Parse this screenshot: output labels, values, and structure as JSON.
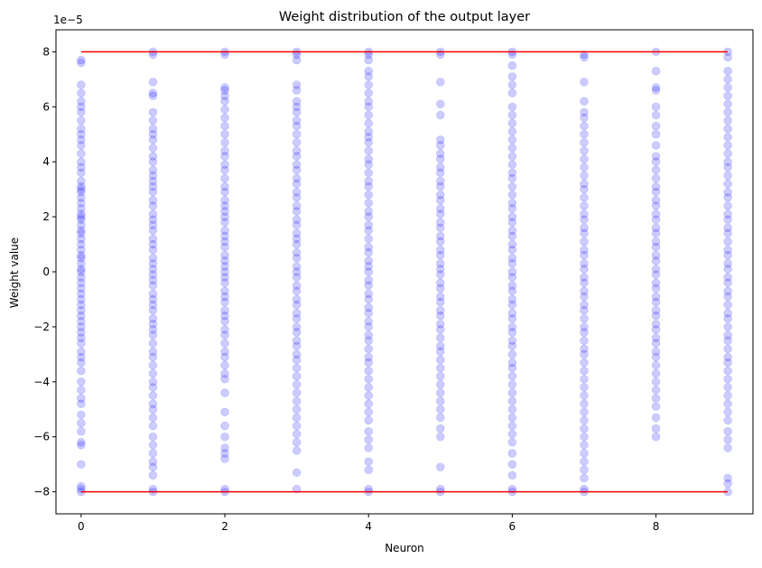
{
  "chart_data": {
    "type": "scatter",
    "title": "Weight distribution of the output layer",
    "xlabel": "Neuron",
    "ylabel": "Weight value",
    "y_offset_label": "1e−5",
    "xlim": [
      -0.35,
      9.35
    ],
    "ylim": [
      -8.8,
      8.8
    ],
    "x_ticks": [
      0,
      2,
      4,
      6,
      8
    ],
    "x_tick_labels": [
      "0",
      "2",
      "4",
      "6",
      "8"
    ],
    "y_ticks": [
      -8,
      -6,
      -4,
      -2,
      0,
      2,
      4,
      6,
      8
    ],
    "y_tick_labels": [
      "−8",
      "−6",
      "−4",
      "−2",
      "0",
      "2",
      "4",
      "6",
      "8"
    ],
    "grid": false,
    "point_color": "#0000ff",
    "point_alpha": 0.2,
    "bound_color": "#ff0000",
    "bounds": [
      {
        "y": 8,
        "x_from": 0,
        "x_to": 9
      },
      {
        "y": -8,
        "x_from": 0,
        "x_to": 9
      }
    ],
    "series": [
      {
        "x": 0,
        "values": [
          7.7,
          7.6,
          6.8,
          6.5,
          6.2,
          6.0,
          5.8,
          5.5,
          5.2,
          5.0,
          4.8,
          4.6,
          4.3,
          4.0,
          3.8,
          3.6,
          3.3,
          3.1,
          3.0,
          2.9,
          2.7,
          2.5,
          2.3,
          2.1,
          2.0,
          1.9,
          1.7,
          1.5,
          1.4,
          1.2,
          1.0,
          0.8,
          0.6,
          0.5,
          0.3,
          0.1,
          0.0,
          -0.2,
          -0.4,
          -0.6,
          -0.8,
          -1.0,
          -1.2,
          -1.4,
          -1.6,
          -1.8,
          -2.0,
          -2.2,
          -2.4,
          -2.6,
          -2.9,
          -3.1,
          -3.3,
          -3.6,
          -4.0,
          -4.3,
          -4.6,
          -4.8,
          -5.2,
          -5.5,
          -5.8,
          -6.2,
          -6.3,
          -7.0,
          -7.8,
          -7.9,
          -8.0
        ]
      },
      {
        "x": 1,
        "values": [
          8.0,
          7.9,
          6.9,
          6.5,
          6.4,
          5.8,
          5.5,
          5.2,
          5.0,
          4.8,
          4.5,
          4.2,
          4.0,
          3.7,
          3.5,
          3.3,
          3.1,
          2.9,
          2.6,
          2.4,
          2.1,
          1.9,
          1.7,
          1.5,
          1.2,
          1.0,
          0.8,
          0.5,
          0.3,
          0.1,
          -0.1,
          -0.3,
          -0.5,
          -0.8,
          -1.0,
          -1.2,
          -1.4,
          -1.7,
          -1.9,
          -2.1,
          -2.3,
          -2.6,
          -2.9,
          -3.1,
          -3.4,
          -3.7,
          -4.0,
          -4.2,
          -4.5,
          -4.8,
          -5.0,
          -5.3,
          -5.6,
          -6.0,
          -6.3,
          -6.6,
          -6.9,
          -7.1,
          -7.4,
          -7.9,
          -8.0
        ]
      },
      {
        "x": 2,
        "values": [
          8.0,
          7.9,
          6.7,
          6.6,
          6.4,
          6.2,
          5.9,
          5.6,
          5.3,
          5.0,
          4.7,
          4.4,
          4.2,
          3.9,
          3.7,
          3.4,
          3.1,
          2.9,
          2.6,
          2.4,
          2.2,
          2.0,
          1.8,
          1.5,
          1.3,
          1.1,
          0.9,
          0.6,
          0.4,
          0.2,
          0.0,
          -0.2,
          -0.4,
          -0.7,
          -0.9,
          -1.1,
          -1.4,
          -1.6,
          -1.8,
          -2.1,
          -2.3,
          -2.6,
          -2.9,
          -3.1,
          -3.4,
          -3.7,
          -3.9,
          -4.4,
          -5.1,
          -5.6,
          -6.0,
          -6.4,
          -6.6,
          -6.8,
          -7.9,
          -8.0
        ]
      },
      {
        "x": 3,
        "values": [
          8.0,
          7.9,
          7.7,
          6.8,
          6.6,
          6.2,
          6.0,
          5.8,
          5.5,
          5.3,
          5.0,
          4.7,
          4.4,
          4.2,
          3.9,
          3.7,
          3.4,
          3.2,
          2.9,
          2.7,
          2.4,
          2.2,
          1.9,
          1.7,
          1.4,
          1.2,
          1.0,
          0.7,
          0.5,
          0.2,
          0.0,
          -0.2,
          -0.5,
          -0.7,
          -1.0,
          -1.2,
          -1.5,
          -1.7,
          -2.0,
          -2.2,
          -2.5,
          -2.7,
          -3.0,
          -3.2,
          -3.5,
          -3.8,
          -4.1,
          -4.4,
          -4.7,
          -5.0,
          -5.3,
          -5.6,
          -5.9,
          -6.2,
          -6.5,
          -7.3,
          -7.9
        ]
      },
      {
        "x": 4,
        "values": [
          8.0,
          7.9,
          7.7,
          7.3,
          7.1,
          6.8,
          6.5,
          6.2,
          6.0,
          5.7,
          5.4,
          5.1,
          4.9,
          4.7,
          4.4,
          4.1,
          3.9,
          3.6,
          3.3,
          3.1,
          2.8,
          2.5,
          2.2,
          2.0,
          1.7,
          1.5,
          1.2,
          0.9,
          0.7,
          0.4,
          0.2,
          0.0,
          -0.3,
          -0.5,
          -0.8,
          -1.0,
          -1.3,
          -1.5,
          -1.8,
          -2.0,
          -2.3,
          -2.5,
          -2.8,
          -3.1,
          -3.3,
          -3.6,
          -3.9,
          -4.2,
          -4.5,
          -4.8,
          -5.1,
          -5.4,
          -5.8,
          -6.1,
          -6.4,
          -6.9,
          -7.2,
          -7.9,
          -8.0
        ]
      },
      {
        "x": 5,
        "values": [
          8.0,
          7.9,
          6.9,
          6.1,
          5.7,
          4.8,
          4.6,
          4.3,
          4.1,
          3.8,
          3.6,
          3.3,
          3.1,
          2.8,
          2.6,
          2.3,
          2.1,
          1.8,
          1.6,
          1.3,
          1.1,
          0.8,
          0.6,
          0.3,
          0.1,
          -0.1,
          -0.4,
          -0.6,
          -0.9,
          -1.1,
          -1.4,
          -1.6,
          -1.9,
          -2.1,
          -2.4,
          -2.7,
          -2.9,
          -3.2,
          -3.5,
          -3.8,
          -4.1,
          -4.4,
          -4.7,
          -5.0,
          -5.3,
          -5.7,
          -6.0,
          -7.1,
          -7.9,
          -8.0
        ]
      },
      {
        "x": 6,
        "values": [
          8.0,
          7.9,
          7.5,
          7.1,
          6.8,
          6.5,
          6.0,
          5.7,
          5.4,
          5.1,
          4.8,
          4.5,
          4.2,
          3.9,
          3.6,
          3.4,
          3.1,
          2.8,
          2.5,
          2.3,
          2.0,
          1.8,
          1.5,
          1.3,
          1.0,
          0.8,
          0.5,
          0.3,
          0.0,
          -0.2,
          -0.5,
          -0.7,
          -1.0,
          -1.2,
          -1.5,
          -1.7,
          -2.0,
          -2.2,
          -2.5,
          -2.7,
          -3.0,
          -3.3,
          -3.5,
          -3.8,
          -4.1,
          -4.4,
          -4.7,
          -5.0,
          -5.3,
          -5.6,
          -5.9,
          -6.2,
          -6.6,
          -7.0,
          -7.4,
          -7.9,
          -8.0
        ]
      },
      {
        "x": 7,
        "values": [
          7.9,
          7.8,
          6.9,
          6.2,
          5.8,
          5.6,
          5.3,
          5.0,
          4.7,
          4.4,
          4.1,
          3.8,
          3.5,
          3.2,
          3.0,
          2.7,
          2.4,
          2.1,
          1.9,
          1.6,
          1.4,
          1.1,
          0.8,
          0.6,
          0.3,
          0.1,
          -0.2,
          -0.4,
          -0.7,
          -0.9,
          -1.2,
          -1.4,
          -1.7,
          -2.0,
          -2.2,
          -2.5,
          -2.8,
          -3.0,
          -3.3,
          -3.6,
          -3.9,
          -4.2,
          -4.5,
          -4.8,
          -5.1,
          -5.4,
          -5.7,
          -6.0,
          -6.3,
          -6.6,
          -6.9,
          -7.2,
          -7.5,
          -7.9,
          -8.0
        ]
      },
      {
        "x": 8,
        "values": [
          8.0,
          7.3,
          6.7,
          6.6,
          6.0,
          5.7,
          5.3,
          5.0,
          4.6,
          4.2,
          4.0,
          3.7,
          3.4,
          3.1,
          2.9,
          2.6,
          2.4,
          2.1,
          1.9,
          1.6,
          1.4,
          1.1,
          0.9,
          0.6,
          0.4,
          0.1,
          -0.1,
          -0.4,
          -0.6,
          -0.9,
          -1.1,
          -1.4,
          -1.6,
          -1.9,
          -2.1,
          -2.4,
          -2.6,
          -2.9,
          -3.1,
          -3.4,
          -3.7,
          -4.0,
          -4.3,
          -4.6,
          -4.9,
          -5.3,
          -5.7,
          -6.0
        ]
      },
      {
        "x": 9,
        "values": [
          8.0,
          7.8,
          7.3,
          7.0,
          6.7,
          6.4,
          6.1,
          5.8,
          5.5,
          5.2,
          4.9,
          4.6,
          4.3,
          4.0,
          3.8,
          3.5,
          3.2,
          2.9,
          2.7,
          2.4,
          2.1,
          1.9,
          1.6,
          1.4,
          1.1,
          0.8,
          0.6,
          0.3,
          0.1,
          -0.2,
          -0.4,
          -0.7,
          -0.9,
          -1.2,
          -1.5,
          -1.7,
          -2.0,
          -2.3,
          -2.5,
          -2.8,
          -3.1,
          -3.3,
          -3.6,
          -3.9,
          -4.2,
          -4.5,
          -4.8,
          -5.1,
          -5.4,
          -5.8,
          -6.1,
          -6.4,
          -7.5,
          -7.7,
          -8.0
        ]
      }
    ]
  }
}
